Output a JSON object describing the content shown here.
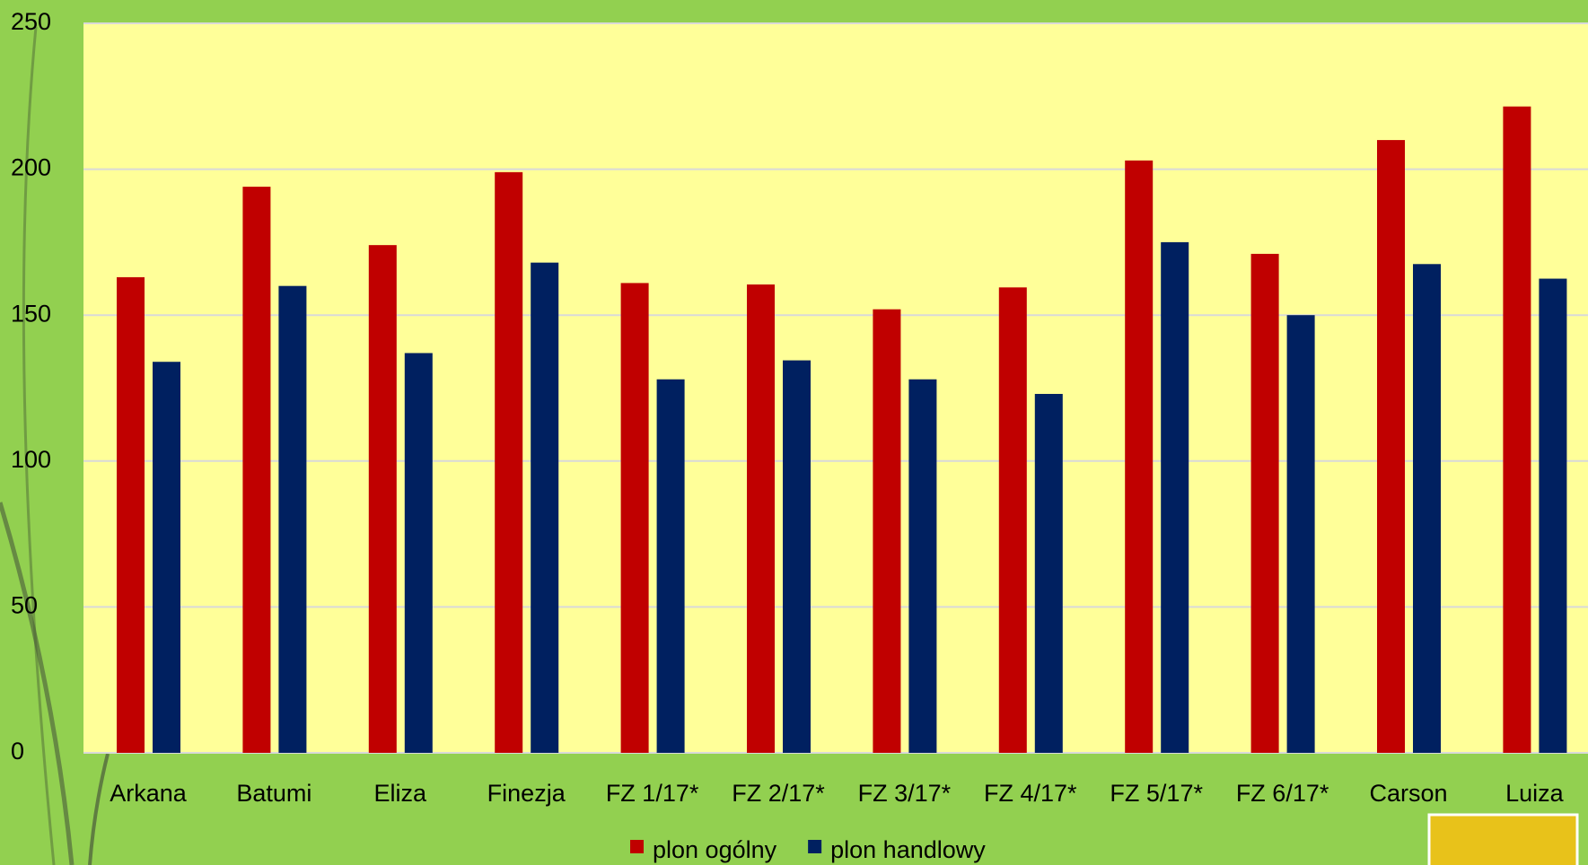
{
  "chart_data": {
    "type": "bar",
    "categories": [
      "Arkana",
      "Batumi",
      "Eliza",
      "Finezja",
      "FZ 1/17*",
      "FZ 2/17*",
      "FZ 3/17*",
      "FZ 4/17*",
      "FZ 5/17*",
      "FZ 6/17*",
      "Carson",
      "Luiza"
    ],
    "series": [
      {
        "name": "plon ogólny",
        "color": "#c00000",
        "values": [
          163,
          194,
          174,
          199,
          161,
          160.5,
          152,
          159.5,
          203,
          171,
          210,
          221.5
        ]
      },
      {
        "name": "plon handlowy",
        "color": "#002060",
        "values": [
          134,
          160,
          137,
          168,
          128,
          134.5,
          128,
          123,
          175,
          150,
          167.5,
          162.5
        ]
      }
    ],
    "ylim": [
      0,
      250
    ],
    "yticks": [
      0,
      50,
      100,
      150,
      200,
      250
    ],
    "grid": true,
    "legend": "bottom"
  }
}
